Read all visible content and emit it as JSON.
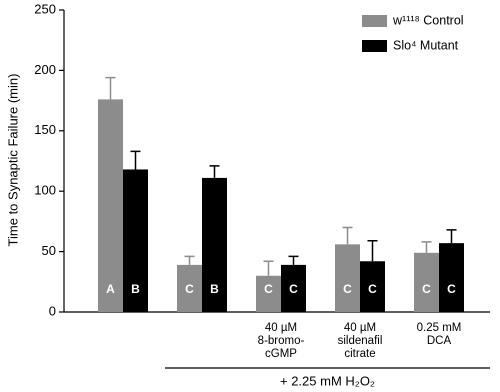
{
  "chart_data": {
    "type": "bar",
    "y_label": "Time to Synaptic Failure (min)",
    "categories": [
      null,
      null,
      [
        "40 µM",
        "8-bromo-",
        "cGMP"
      ],
      [
        "40 µM",
        "sildenafil",
        "citrate"
      ],
      [
        "0.25 mM",
        "DCA"
      ]
    ],
    "series": [
      {
        "name": "w¹¹¹⁸ Control",
        "color": "#8c8c8c",
        "values": [
          176,
          39,
          30,
          56,
          49
        ],
        "errors": [
          18,
          7,
          12,
          14,
          9
        ],
        "bar_labels": [
          "A",
          "C",
          "C",
          "C",
          "C"
        ]
      },
      {
        "name": "Slo⁴ Mutant",
        "color": "#000000",
        "values": [
          118,
          111,
          39,
          42,
          57
        ],
        "errors": [
          15,
          10,
          7,
          17,
          11
        ],
        "bar_labels": [
          "B",
          "B",
          "C",
          "C",
          "C"
        ]
      }
    ],
    "annotation": "+ 2.25 mM H₂O₂",
    "ylim": [
      0,
      250
    ],
    "yticks": [
      0,
      50,
      100,
      150,
      200,
      250
    ],
    "legend": "top-right"
  }
}
